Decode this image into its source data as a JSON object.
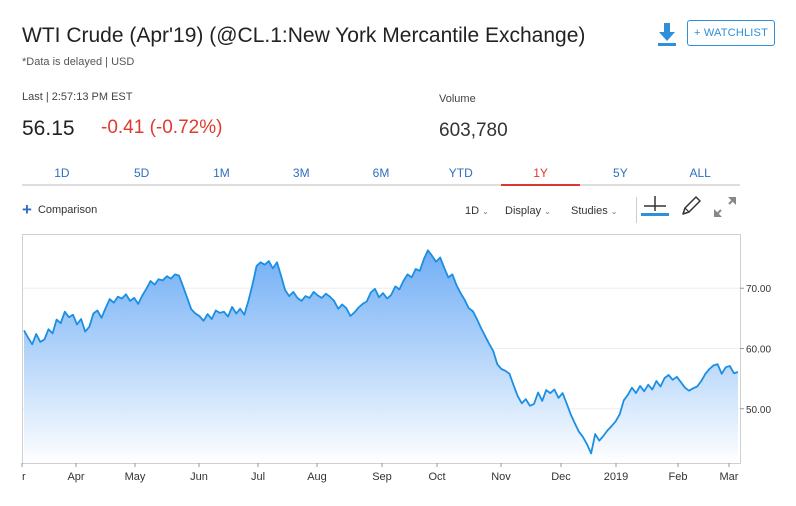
{
  "header": {
    "title": "WTI Crude (Apr'19) (@CL.1:New York Mercantile Exchange)",
    "subtitle": "*Data is delayed | USD",
    "watchlist_label": "+ WATCHLIST",
    "download_icon": "download-icon"
  },
  "quote": {
    "last_label": "Last | 2:57:13 PM EST",
    "price": "56.15",
    "change": "-0.41 (-0.72%)",
    "volume_label": "Volume",
    "volume_value": "603,780"
  },
  "tabs": [
    {
      "label": "1D"
    },
    {
      "label": "5D"
    },
    {
      "label": "1M"
    },
    {
      "label": "3M"
    },
    {
      "label": "6M"
    },
    {
      "label": "YTD"
    },
    {
      "label": "1Y",
      "active": true
    },
    {
      "label": "5Y"
    },
    {
      "label": "ALL"
    }
  ],
  "active_tab_color": "#e03a2f",
  "toolbar": {
    "comparison_label": "Comparison",
    "interval_label": "1D",
    "display_label": "Display",
    "studies_label": "Studies",
    "icons": [
      "crosshair-icon",
      "pencil-icon",
      "expand-icon"
    ]
  },
  "chart_data": {
    "type": "area",
    "line_color": "#1a8fe3",
    "x_tick_labels": [
      "r",
      "Apr",
      "May",
      "Jun",
      "Jul",
      "Aug",
      "Sep",
      "Oct",
      "Nov",
      "Dec",
      "2019",
      "Feb",
      "Mar"
    ],
    "y_tick_labels": [
      "70.00",
      "60.00",
      "50.00"
    ],
    "y_ticks": [
      70,
      60,
      50
    ],
    "ylim": [
      41.0,
      79.0
    ],
    "xlim": [
      0,
      1
    ],
    "grid": true,
    "values": [
      63.0,
      61.8,
      60.7,
      62.4,
      61.1,
      61.5,
      63.2,
      62.5,
      64.8,
      64.2,
      66.1,
      65.2,
      65.6,
      64.0,
      64.9,
      62.8,
      63.6,
      65.8,
      66.3,
      65.1,
      66.7,
      68.2,
      67.6,
      68.6,
      68.3,
      69.0,
      67.9,
      68.4,
      67.4,
      68.8,
      69.9,
      71.2,
      70.6,
      71.5,
      71.3,
      72.0,
      71.6,
      72.3,
      72.1,
      70.3,
      68.4,
      66.5,
      65.8,
      65.4,
      64.6,
      65.7,
      64.9,
      66.3,
      65.9,
      66.1,
      65.3,
      66.9,
      65.8,
      66.6,
      65.6,
      67.9,
      70.6,
      73.7,
      74.3,
      73.9,
      74.5,
      73.3,
      74.3,
      72.1,
      69.7,
      68.7,
      69.4,
      68.4,
      67.9,
      68.7,
      68.4,
      69.4,
      68.8,
      68.4,
      69.1,
      68.6,
      67.9,
      66.6,
      67.3,
      66.7,
      65.4,
      66.0,
      66.8,
      67.4,
      67.8,
      69.3,
      69.9,
      68.5,
      69.2,
      68.3,
      68.9,
      70.3,
      69.8,
      71.2,
      72.3,
      71.8,
      73.2,
      72.9,
      74.8,
      76.3,
      75.4,
      74.4,
      75.1,
      73.4,
      71.8,
      72.3,
      70.5,
      69.2,
      68.1,
      66.7,
      66.2,
      64.9,
      63.4,
      62.1,
      60.8,
      59.6,
      57.4,
      56.6,
      56.3,
      55.8,
      53.9,
      52.1,
      50.9,
      51.6,
      50.5,
      50.8,
      52.7,
      51.3,
      53.1,
      52.6,
      53.2,
      51.8,
      52.6,
      50.9,
      49.1,
      47.6,
      46.2,
      45.3,
      44.1,
      42.6,
      45.8,
      44.7,
      45.5,
      46.4,
      47.1,
      47.9,
      49.1,
      51.4,
      52.3,
      53.5,
      52.6,
      53.8,
      52.9,
      54.0,
      53.2,
      54.6,
      53.7,
      55.1,
      55.6,
      54.8,
      55.3,
      54.4,
      53.5,
      53.0,
      53.4,
      53.7,
      54.6,
      55.8,
      56.6,
      57.2,
      57.4,
      55.8,
      56.9,
      57.1,
      55.9,
      56.1
    ]
  }
}
